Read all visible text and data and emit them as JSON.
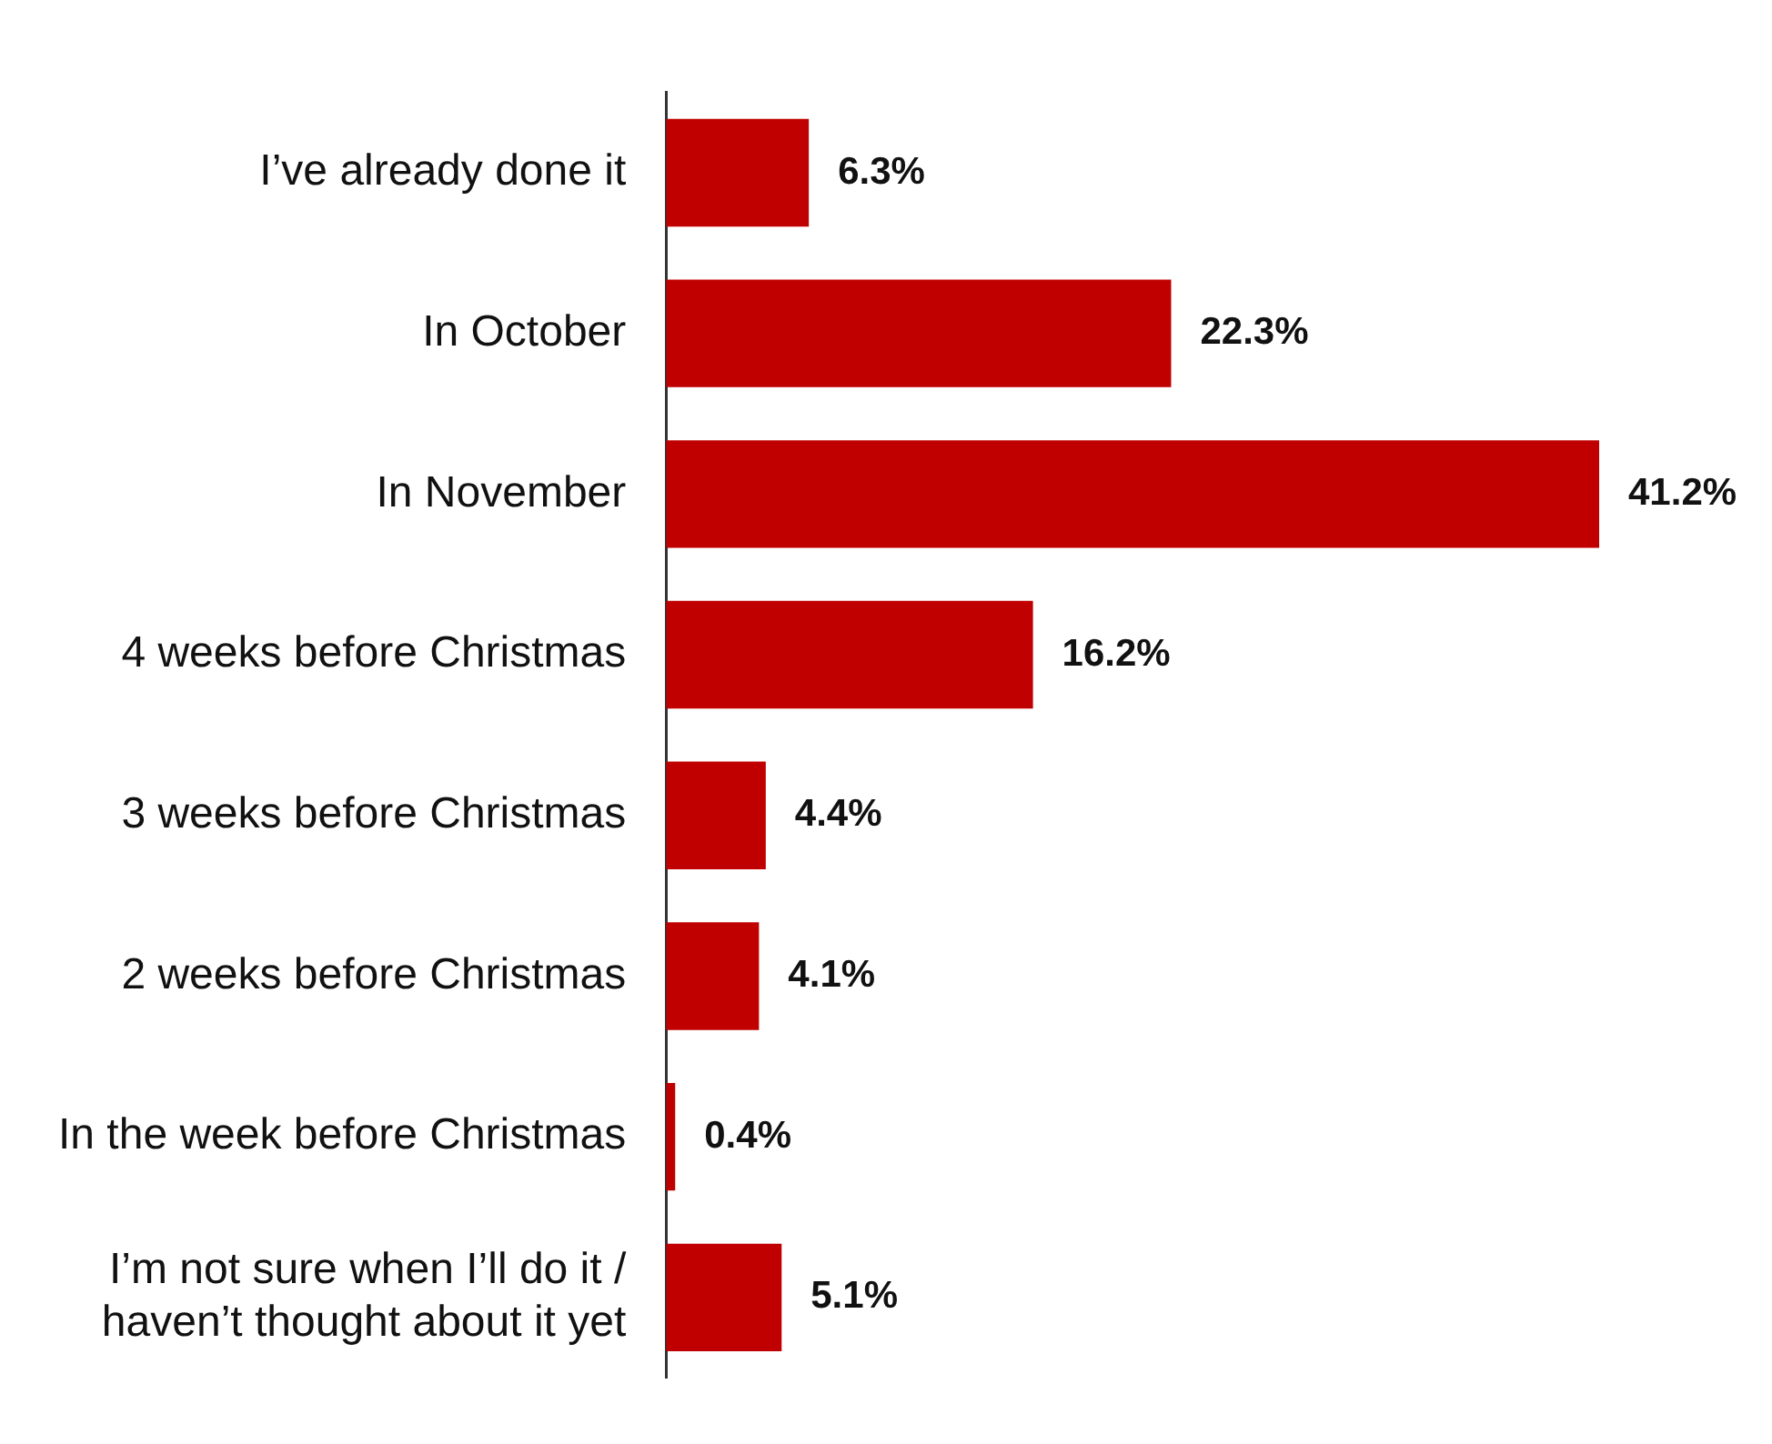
{
  "chart_data": {
    "type": "bar",
    "orientation": "horizontal",
    "categories": [
      "I’ve already done it",
      "In October",
      "In November",
      "4 weeks before Christmas",
      "3 weeks before Christmas",
      "2 weeks before Christmas",
      "In the week before Christmas",
      "I’m not sure when I’ll do it /\nhaven’t thought about it yet"
    ],
    "values": [
      6.3,
      22.3,
      41.2,
      16.2,
      4.4,
      4.1,
      0.4,
      5.1
    ],
    "value_labels": [
      "6.3%",
      "22.3%",
      "41.2%",
      "16.2%",
      "4.4%",
      "4.1%",
      "0.4%",
      "5.1%"
    ],
    "color": "#c00000"
  }
}
